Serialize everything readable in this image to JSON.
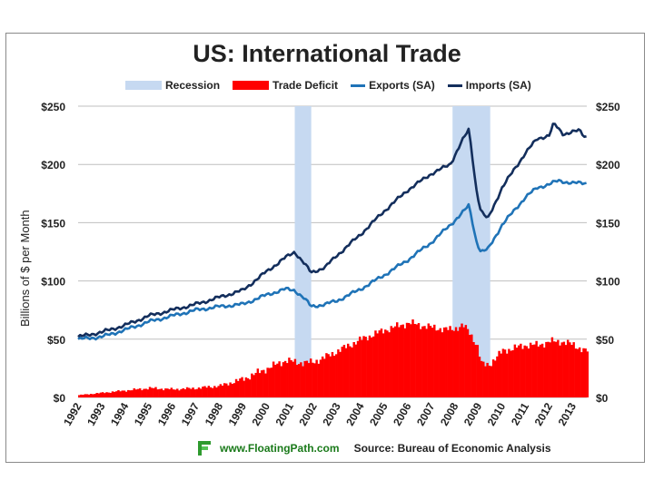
{
  "chart_data": {
    "type": "line",
    "title": "US: International Trade",
    "ylabel": "Billions of $ per Month",
    "xlabel": "",
    "ylim": [
      0,
      250
    ],
    "xlim": [
      1992.0,
      2013.6
    ],
    "yticks_left": [
      "$0",
      "$50",
      "$100",
      "$150",
      "$200",
      "$250"
    ],
    "yticks_right": [
      "$0",
      "$50",
      "$100",
      "$150",
      "$200",
      "$250"
    ],
    "ytick_values": [
      0,
      50,
      100,
      150,
      200,
      250
    ],
    "xticks": [
      "1992",
      "1993",
      "1994",
      "1995",
      "1996",
      "1997",
      "1998",
      "1999",
      "2000",
      "2001",
      "2002",
      "2003",
      "2004",
      "2005",
      "2006",
      "2007",
      "2008",
      "2009",
      "2010",
      "2011",
      "2012",
      "2013"
    ],
    "legend": [
      "Recession",
      "Trade Deficit",
      "Exports (SA)",
      "Imports (SA)"
    ],
    "recessions": [
      {
        "start": 2001.2,
        "end": 2001.9
      },
      {
        "start": 2007.9,
        "end": 2009.5
      }
    ],
    "series": [
      {
        "name": "Imports (SA)",
        "color": "#132e5c",
        "x": [
          1992.0,
          1993.0,
          1994.0,
          1995.0,
          1996.0,
          1997.0,
          1998.0,
          1999.0,
          2000.0,
          2000.8,
          2001.2,
          2001.6,
          2001.9,
          2002.5,
          2003.0,
          2004.0,
          2005.0,
          2006.0,
          2007.0,
          2007.8,
          2008.3,
          2008.6,
          2008.9,
          2009.1,
          2009.4,
          2010.0,
          2011.0,
          2011.5,
          2012.0,
          2012.2,
          2012.6,
          2013.0,
          2013.3,
          2013.5
        ],
        "values": [
          52,
          56,
          62,
          70,
          75,
          80,
          86,
          92,
          108,
          120,
          125,
          115,
          107,
          112,
          122,
          140,
          160,
          178,
          192,
          200,
          220,
          230,
          180,
          160,
          153,
          180,
          210,
          222,
          225,
          235,
          226,
          228,
          229,
          224
        ]
      },
      {
        "name": "Exports (SA)",
        "color": "#1f73b7",
        "x": [
          1992.0,
          1993.0,
          1994.0,
          1995.0,
          1996.0,
          1997.0,
          1998.0,
          1999.0,
          2000.0,
          2000.8,
          2001.2,
          2001.6,
          2001.9,
          2002.5,
          2003.0,
          2004.0,
          2005.0,
          2006.0,
          2007.0,
          2007.8,
          2008.3,
          2008.6,
          2008.9,
          2009.1,
          2009.4,
          2010.0,
          2011.0,
          2011.5,
          2012.0,
          2012.4,
          2013.0,
          2013.5
        ],
        "values": [
          50,
          52,
          58,
          65,
          70,
          75,
          78,
          80,
          88,
          93,
          92,
          85,
          78,
          80,
          83,
          93,
          105,
          118,
          133,
          148,
          158,
          165,
          135,
          125,
          127,
          148,
          172,
          180,
          183,
          186,
          184,
          184
        ]
      },
      {
        "name": "Trade Deficit",
        "color": "#ff0000",
        "x": [
          1992.0,
          1993.0,
          1994.0,
          1995.0,
          1996.0,
          1997.0,
          1998.0,
          1999.0,
          2000.0,
          2000.8,
          2001.2,
          2001.6,
          2001.9,
          2002.5,
          2003.0,
          2004.0,
          2005.0,
          2006.0,
          2007.0,
          2007.8,
          2008.3,
          2008.6,
          2008.9,
          2009.1,
          2009.4,
          2010.0,
          2011.0,
          2011.5,
          2012.0,
          2012.5,
          2013.0,
          2013.5
        ],
        "values": [
          2,
          4,
          6,
          8,
          7,
          8,
          10,
          16,
          25,
          32,
          30,
          30,
          30,
          35,
          40,
          50,
          58,
          64,
          60,
          58,
          62,
          55,
          45,
          28,
          28,
          40,
          45,
          45,
          48,
          48,
          45,
          40
        ]
      }
    ]
  },
  "footer": {
    "link_text": "www.FloatingPath.com",
    "source_text": "Source: Bureau of Economic Analysis"
  }
}
